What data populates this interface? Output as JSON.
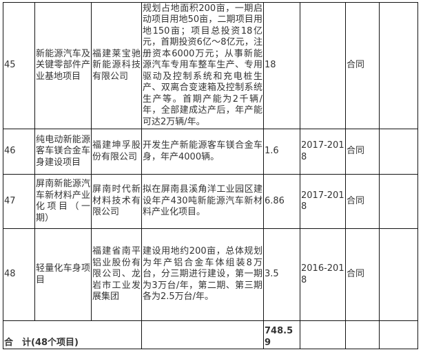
{
  "rows": [
    {
      "no": "45",
      "name": "新能源汽车及关键零部件产业基地项目",
      "company": "福建莱宝驰新能源科技有限公司",
      "content": "规划占地面积200亩，一期启动项目用地50亩，二期项目用地150亩；项目总投资18亿元，首期投资6亿～8亿元，注册资本6000万元；从事新能源汽车专用车整车生产、专用驱动及控制系统和充电桩生产、双离合变速箱及控制系统生产等。首期产能为2千辆/年，全部建成达产后，年产能可达2万辆/年。",
      "investment": "18",
      "period": "",
      "status": "合同",
      "note": ""
    },
    {
      "no": "46",
      "name": "纯电动新能源客车镁合金车身建设项目",
      "company": "福建坤孚股份有限公司",
      "content": "开发生产新能源客车镁合金车身，年产4000辆。",
      "investment": "1.6",
      "period": "2017-2018",
      "status": "合同",
      "note": ""
    },
    {
      "no": "47",
      "name": "屏南新能源汽车新材料产业化项目（一期）",
      "company": "屏南时代新材料技术有限公司",
      "content": "拟在屏南县溪角洋工业园区建设年产430吨新能源汽车新材料产业化项目。",
      "investment": "6.86",
      "period": "2017-2018",
      "status": "合同",
      "note": ""
    },
    {
      "no": "48",
      "name": "轻量化车身项目",
      "company": "福建省南平铝业股份有限公司、龙岩市工业发展集团",
      "content": "建设用地约200亩，总体规划为年产铝合金车体组装8万台，分三期进行建设，第一期为3万台/年，第二期、第三期各为2.5万台/年。",
      "investment": "3.5",
      "period": "2016-2018",
      "status": "合同",
      "note": ""
    }
  ],
  "total": {
    "label": "合　计(48个项目)",
    "investment": "748.59"
  }
}
